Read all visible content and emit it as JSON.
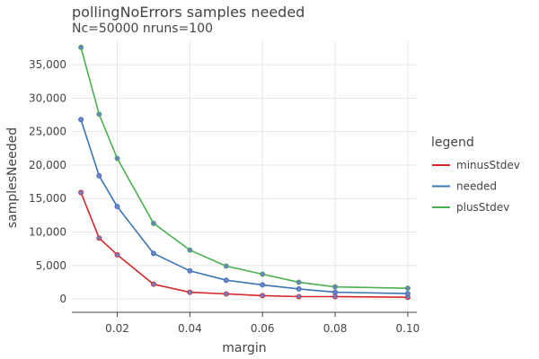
{
  "chart_data": {
    "type": "line",
    "title": "pollingNoErrors samples needed",
    "subtitle": "Nc=50000 nruns=100",
    "xlabel": "margin",
    "ylabel": "samplesNeeded",
    "xlim": [
      0.0075,
      0.1025
    ],
    "ylim": [
      -2000,
      38500
    ],
    "xticks": [
      0.02,
      0.04,
      0.06,
      0.08,
      0.1
    ],
    "xtick_labels": [
      "0.02",
      "0.04",
      "0.06",
      "0.08",
      "0.10"
    ],
    "yticks": [
      0,
      5000,
      10000,
      15000,
      20000,
      25000,
      30000,
      35000
    ],
    "ytick_labels": [
      "0",
      "5,000",
      "10,000",
      "15,000",
      "20,000",
      "25,000",
      "30,000",
      "35,000"
    ],
    "grid": true,
    "legend_title": "legend",
    "legend_position": "right",
    "x": [
      0.01,
      0.015,
      0.02,
      0.03,
      0.04,
      0.05,
      0.06,
      0.07,
      0.08,
      0.1
    ],
    "series": [
      {
        "name": "minusStdev",
        "color": "#d62728",
        "values": [
          15900,
          9100,
          6600,
          2200,
          1000,
          750,
          500,
          350,
          350,
          250
        ]
      },
      {
        "name": "needed",
        "color": "#3a76b4",
        "values": [
          26800,
          18400,
          13800,
          6800,
          4200,
          2800,
          2100,
          1500,
          1000,
          800
        ]
      },
      {
        "name": "plusStdev",
        "color": "#4caf50",
        "values": [
          37600,
          27600,
          21000,
          11300,
          7300,
          4900,
          3700,
          2500,
          1800,
          1600
        ]
      }
    ],
    "marker_color": "#6f7fc7"
  }
}
